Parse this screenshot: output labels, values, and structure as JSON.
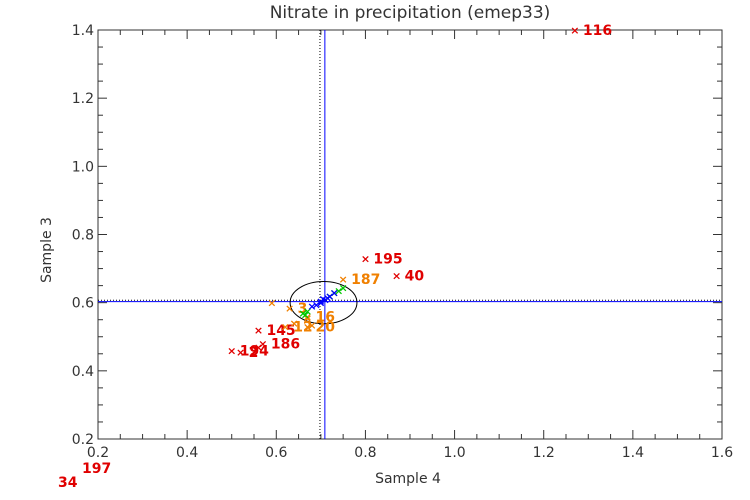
{
  "chart_data": {
    "type": "scatter",
    "title": "Nitrate in precipitation (emep33)",
    "xlabel": "Sample 4",
    "ylabel": "Sample 3",
    "xlim": [
      0.2,
      1.6
    ],
    "ylim": [
      0.2,
      1.4
    ],
    "xticks": [
      "0.2",
      "0.4",
      "0.6",
      "0.8",
      "1.0",
      "1.2",
      "1.4",
      "1.6"
    ],
    "yticks": [
      "0.2",
      "0.4",
      "0.6",
      "0.8",
      "1.0",
      "1.2",
      "1.4"
    ],
    "reference_lines": {
      "median_x": 0.709,
      "median_y": 0.603,
      "dotted_x": 0.698,
      "dotted_y": 0.607
    },
    "ellipse": {
      "cx": 0.706,
      "cy": 0.6,
      "rx": 0.075,
      "ry": 0.062
    },
    "colors": {
      "red": "#e00000",
      "orange": "#f08000",
      "green": "#00c800",
      "blue": "#0000ff",
      "line_blue": "#0000ff",
      "axis": "#333333"
    },
    "series": [
      {
        "color": "red",
        "points": [
          {
            "x": 1.27,
            "y": 1.4,
            "label": "116"
          },
          {
            "x": 0.8,
            "y": 0.73,
            "label": "195"
          },
          {
            "x": 0.87,
            "y": 0.68,
            "label": "40"
          },
          {
            "x": 0.56,
            "y": 0.52,
            "label": "145"
          },
          {
            "x": 0.57,
            "y": 0.48,
            "label": "186"
          },
          {
            "x": 0.56,
            "y": 0.47,
            "label": ""
          },
          {
            "x": 0.5,
            "y": 0.46,
            "label": "194"
          },
          {
            "x": 0.52,
            "y": 0.455,
            "label": "2"
          }
        ]
      },
      {
        "color": "orange",
        "points": [
          {
            "x": 0.75,
            "y": 0.67,
            "label": "187"
          },
          {
            "x": 0.59,
            "y": 0.6,
            "label": ""
          },
          {
            "x": 0.63,
            "y": 0.585,
            "label": "3"
          },
          {
            "x": 0.67,
            "y": 0.56,
            "label": "16"
          },
          {
            "x": 0.67,
            "y": 0.555,
            "label": ""
          },
          {
            "x": 0.64,
            "y": 0.54,
            "label": ""
          },
          {
            "x": 0.62,
            "y": 0.53,
            "label": "12"
          },
          {
            "x": 0.67,
            "y": 0.53,
            "label": "20"
          },
          {
            "x": 0.68,
            "y": 0.535,
            "label": ""
          }
        ]
      },
      {
        "color": "green",
        "points": [
          {
            "x": 0.73,
            "y": 0.63,
            "label": ""
          },
          {
            "x": 0.74,
            "y": 0.635,
            "label": ""
          },
          {
            "x": 0.75,
            "y": 0.645,
            "label": ""
          },
          {
            "x": 0.72,
            "y": 0.62,
            "label": ""
          },
          {
            "x": 0.66,
            "y": 0.57,
            "label": ""
          },
          {
            "x": 0.67,
            "y": 0.575,
            "label": ""
          },
          {
            "x": 0.665,
            "y": 0.565,
            "label": ""
          }
        ]
      },
      {
        "color": "blue",
        "points": [
          {
            "x": 0.7,
            "y": 0.6,
            "label": ""
          },
          {
            "x": 0.71,
            "y": 0.61,
            "label": ""
          },
          {
            "x": 0.72,
            "y": 0.62,
            "label": ""
          },
          {
            "x": 0.69,
            "y": 0.595,
            "label": ""
          },
          {
            "x": 0.7,
            "y": 0.605,
            "label": ""
          },
          {
            "x": 0.715,
            "y": 0.615,
            "label": ""
          },
          {
            "x": 0.73,
            "y": 0.63,
            "label": ""
          },
          {
            "x": 0.68,
            "y": 0.59,
            "label": ""
          },
          {
            "x": 0.705,
            "y": 0.612,
            "label": ""
          }
        ]
      }
    ],
    "outside_labels": [
      {
        "text": "197",
        "color": "red"
      },
      {
        "text": "34",
        "color": "red"
      }
    ]
  }
}
